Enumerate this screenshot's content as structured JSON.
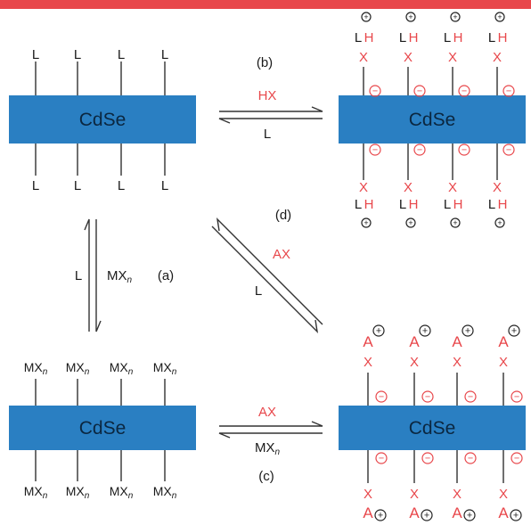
{
  "colors": {
    "header_bar": "#e8474b",
    "nanocrystal": "#2a7fc2",
    "ligand_line": "#6f6f6f",
    "accent_text": "#e8474b",
    "text": "#1a1a1a"
  },
  "nanocrystal_label": "CdSe",
  "ligands": {
    "L": "L",
    "X": "X",
    "H": "H",
    "A": "A",
    "M": "MX",
    "n": "n"
  },
  "charges": {
    "positive": "+",
    "negative": "−"
  },
  "reactions": {
    "a": {
      "label": "(a)",
      "forward": "MX",
      "forward_sub": "n",
      "reverse": "L"
    },
    "b": {
      "label": "(b)",
      "forward": "HX",
      "reverse": "L"
    },
    "c": {
      "label": "(c)",
      "forward": "AX",
      "reverse": "MX",
      "reverse_sub": "n"
    },
    "d": {
      "label": "(d)",
      "forward": "AX",
      "reverse": "L"
    }
  }
}
